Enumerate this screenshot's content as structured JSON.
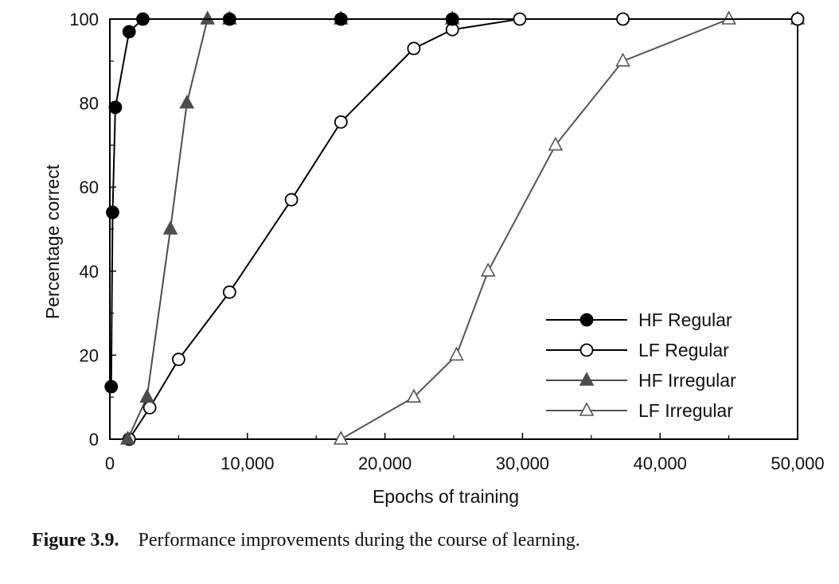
{
  "chart_data": {
    "type": "line",
    "title": "",
    "xlabel": "Epochs of training",
    "ylabel": "Percentage correct",
    "xlim": [
      0,
      50000
    ],
    "ylim": [
      0,
      100
    ],
    "xticks": [
      0,
      10000,
      20000,
      30000,
      40000,
      50000
    ],
    "xtick_labels": [
      "0",
      "10,000",
      "20,000",
      "30,000",
      "40,000",
      "50,000"
    ],
    "yticks": [
      0,
      20,
      40,
      60,
      80,
      100
    ],
    "ytick_labels": [
      "0",
      "20",
      "40",
      "60",
      "80",
      "100"
    ],
    "grid": false,
    "legend_position": "bottom-right",
    "series": [
      {
        "name": "HF Regular",
        "marker": "filled-circle",
        "color": "#000000",
        "fill": "#000000",
        "x": [
          100,
          200,
          400,
          1400,
          2400,
          8700,
          16800,
          24900
        ],
        "y": [
          12.5,
          54,
          79,
          97,
          100,
          100,
          100,
          100
        ]
      },
      {
        "name": "LF Regular",
        "marker": "open-circle",
        "color": "#000000",
        "fill": "#ffffff",
        "x": [
          1400,
          2900,
          5000,
          8700,
          13200,
          16800,
          22100,
          24900,
          29800,
          37300,
          50000
        ],
        "y": [
          0,
          7.5,
          19,
          35,
          57,
          75.5,
          93,
          97.5,
          100,
          100,
          100
        ]
      },
      {
        "name": "HF Irregular",
        "marker": "filled-triangle",
        "color": "#4d4d4d",
        "fill": "#4d4d4d",
        "x": [
          1300,
          2700,
          4400,
          5600,
          7100,
          8700,
          16800,
          24900
        ],
        "y": [
          0,
          10,
          50,
          80,
          100,
          100,
          100,
          100
        ]
      },
      {
        "name": "LF Irregular",
        "marker": "open-triangle",
        "color": "#555555",
        "fill": "#ffffff",
        "x": [
          16800,
          22100,
          25200,
          27500,
          32400,
          37300,
          45000,
          50000
        ],
        "y": [
          0,
          10,
          20,
          40,
          70,
          90,
          100,
          100
        ]
      }
    ]
  },
  "caption": {
    "figure_number": "Figure 3.9.",
    "text": "Performance improvements during the course of learning."
  }
}
